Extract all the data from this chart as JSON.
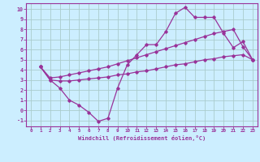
{
  "background_color": "#cceeff",
  "grid_color": "#aacccc",
  "line_color": "#993399",
  "spine_color": "#993399",
  "xlim": [
    -0.5,
    23.5
  ],
  "ylim": [
    -1.6,
    10.6
  ],
  "xticks": [
    0,
    1,
    2,
    3,
    4,
    5,
    6,
    7,
    8,
    9,
    10,
    11,
    12,
    13,
    14,
    15,
    16,
    17,
    18,
    19,
    20,
    21,
    22,
    23
  ],
  "yticks": [
    -1,
    0,
    1,
    2,
    3,
    4,
    5,
    6,
    7,
    8,
    9,
    10
  ],
  "xlabel": "Windchill (Refroidissement éolien,°C)",
  "line1_x": [
    1,
    2,
    3,
    4,
    5,
    6,
    7,
    8,
    9,
    10,
    11,
    12,
    13,
    14,
    15,
    16,
    17,
    18,
    19,
    20,
    21,
    22,
    23
  ],
  "line1_y": [
    4.3,
    3.0,
    2.2,
    1.0,
    0.5,
    -0.2,
    -1.1,
    -0.8,
    2.2,
    4.5,
    5.5,
    6.5,
    6.5,
    7.8,
    9.6,
    10.2,
    9.2,
    9.2,
    9.2,
    7.6,
    6.2,
    6.8,
    5.0
  ],
  "line2_x": [
    1,
    2,
    3,
    4,
    5,
    6,
    7,
    8,
    9,
    10,
    11,
    12,
    13,
    14,
    15,
    16,
    17,
    18,
    19,
    20,
    21,
    22,
    23
  ],
  "line2_y": [
    4.3,
    3.2,
    3.3,
    3.5,
    3.7,
    3.9,
    4.1,
    4.3,
    4.6,
    4.9,
    5.2,
    5.5,
    5.8,
    6.1,
    6.4,
    6.7,
    7.0,
    7.3,
    7.6,
    7.8,
    8.0,
    6.3,
    5.0
  ],
  "line3_x": [
    1,
    2,
    3,
    4,
    5,
    6,
    7,
    8,
    9,
    10,
    11,
    12,
    13,
    14,
    15,
    16,
    17,
    18,
    19,
    20,
    21,
    22,
    23
  ],
  "line3_y": [
    4.3,
    3.0,
    2.9,
    2.9,
    3.0,
    3.1,
    3.2,
    3.3,
    3.5,
    3.6,
    3.8,
    3.9,
    4.1,
    4.3,
    4.5,
    4.6,
    4.8,
    5.0,
    5.1,
    5.3,
    5.4,
    5.5,
    5.0
  ]
}
